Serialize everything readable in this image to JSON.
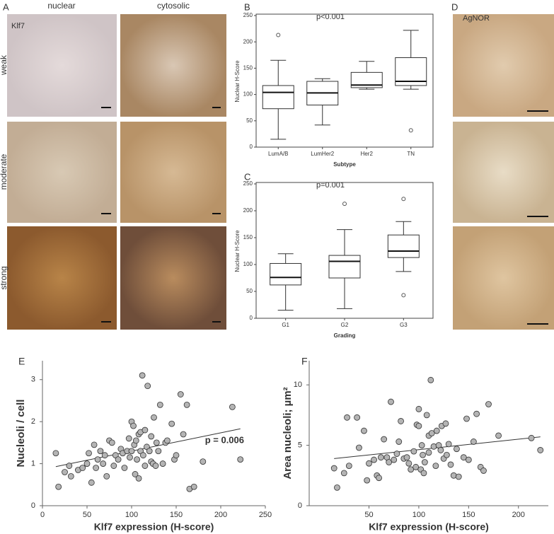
{
  "panel_labels": [
    "A",
    "B",
    "C",
    "D",
    "E",
    "F"
  ],
  "columns": [
    "nuclear",
    "cytosolic"
  ],
  "rows": [
    "weak",
    "moderate",
    "strong"
  ],
  "marker": "Klf7",
  "stain": "AgNOR",
  "chart_data": [
    {
      "type": "box",
      "annotation": "p<0.001",
      "xlabel": "Subtype",
      "ylabel": "Nuclear H-Score",
      "categories": [
        "LumA/B",
        "LumHer2",
        "Her2",
        "TN"
      ],
      "low": [
        15,
        42,
        110,
        110
      ],
      "q1": [
        73,
        80,
        113,
        117
      ],
      "median": [
        104,
        103,
        118,
        125
      ],
      "q3": [
        117,
        125,
        142,
        170
      ],
      "high": [
        165,
        130,
        163,
        222
      ],
      "outliers": [
        [
          213
        ],
        [],
        [],
        [
          32
        ]
      ],
      "ylim": [
        0,
        250
      ],
      "yticks": [
        0,
        50,
        100,
        150,
        200,
        250
      ]
    },
    {
      "type": "box",
      "annotation": "p=0.001",
      "xlabel": "Grading",
      "ylabel": "Nuclear H-Score",
      "categories": [
        "G1",
        "G2",
        "G3"
      ],
      "low": [
        15,
        18,
        87
      ],
      "q1": [
        62,
        75,
        113
      ],
      "median": [
        76,
        106,
        125
      ],
      "q3": [
        102,
        117,
        155
      ],
      "high": [
        120,
        165,
        180
      ],
      "outliers": [
        [],
        [
          213
        ],
        [
          43,
          222
        ]
      ],
      "ylim": [
        0,
        250
      ],
      "yticks": [
        0,
        50,
        100,
        150,
        200,
        250
      ]
    },
    {
      "type": "scatter",
      "annotation": "p = 0.006",
      "xlabel": "Klf7 expression (H-score)",
      "ylabel": "Nucleoli / cell",
      "color": "#b4b4b4",
      "x": [
        15,
        18,
        25,
        30,
        32,
        40,
        45,
        50,
        52,
        55,
        58,
        60,
        62,
        65,
        68,
        70,
        72,
        75,
        78,
        80,
        82,
        85,
        88,
        90,
        92,
        95,
        97,
        98,
        100,
        100,
        102,
        103,
        104,
        105,
        106,
        108,
        108,
        110,
        110,
        112,
        113,
        115,
        115,
        117,
        118,
        120,
        122,
        122,
        124,
        125,
        127,
        128,
        130,
        132,
        135,
        138,
        140,
        145,
        148,
        150,
        155,
        158,
        162,
        165,
        170,
        180,
        213,
        222
      ],
      "y": [
        1.25,
        0.45,
        0.8,
        0.95,
        0.7,
        0.85,
        0.9,
        1.0,
        1.25,
        0.55,
        1.45,
        0.9,
        1.1,
        1.3,
        1.0,
        1.2,
        0.7,
        1.55,
        1.5,
        0.95,
        1.2,
        1.1,
        1.35,
        1.25,
        0.9,
        1.3,
        1.6,
        1.15,
        1.3,
        2.0,
        1.9,
        1.45,
        0.75,
        1.55,
        1.1,
        1.7,
        0.65,
        1.3,
        1.75,
        3.1,
        1.2,
        1.8,
        0.95,
        1.4,
        2.85,
        1.3,
        1.05,
        1.65,
        1.0,
        2.1,
        0.95,
        1.5,
        1.3,
        2.4,
        1.0,
        1.5,
        1.55,
        1.95,
        1.1,
        1.2,
        2.65,
        1.7,
        2.4,
        0.4,
        0.45,
        1.05,
        2.35,
        1.1
      ],
      "trend": {
        "x": [
          15,
          222
        ],
        "y": [
          0.93,
          1.83
        ]
      },
      "xlim": [
        0,
        250
      ],
      "xticks": [
        0,
        50,
        100,
        150,
        200,
        250
      ],
      "ylim": [
        0,
        3.45
      ],
      "yticks": [
        0,
        1,
        2,
        3
      ]
    },
    {
      "type": "scatter",
      "xlabel": "Klf7 expression (H-score)",
      "ylabel": "Area nucleoli; µm²",
      "color": "#b4b4b4",
      "x": [
        15,
        18,
        25,
        28,
        30,
        38,
        40,
        45,
        48,
        50,
        55,
        58,
        60,
        62,
        65,
        68,
        70,
        72,
        75,
        78,
        80,
        82,
        85,
        88,
        90,
        92,
        95,
        97,
        98,
        100,
        100,
        102,
        103,
        104,
        105,
        106,
        108,
        110,
        110,
        112,
        113,
        115,
        117,
        118,
        120,
        122,
        123,
        125,
        127,
        128,
        130,
        132,
        135,
        138,
        140,
        145,
        148,
        150,
        155,
        158,
        162,
        165,
        170,
        180,
        213,
        222
      ],
      "y": [
        3.1,
        1.5,
        2.7,
        7.3,
        3.3,
        7.3,
        4.8,
        6.2,
        2.1,
        3.5,
        3.8,
        2.5,
        2.3,
        4.0,
        5.5,
        4.0,
        3.6,
        8.6,
        3.8,
        4.3,
        5.3,
        7.0,
        3.9,
        4.0,
        3.5,
        3.0,
        4.5,
        3.2,
        6.7,
        6.6,
        8.0,
        3.0,
        5.0,
        4.2,
        2.7,
        3.6,
        7.5,
        5.8,
        4.4,
        10.4,
        6.0,
        4.9,
        3.3,
        6.2,
        5.0,
        4.6,
        6.6,
        3.9,
        6.8,
        4.2,
        5.1,
        3.4,
        2.5,
        4.7,
        2.4,
        4.0,
        7.2,
        3.8,
        5.3,
        7.6,
        3.2,
        2.9,
        8.4,
        5.8,
        5.6,
        4.6
      ],
      "trend": {
        "x": [
          15,
          222
        ],
        "y": [
          3.9,
          5.7
        ]
      },
      "xlim": [
        -10,
        230
      ],
      "xticks": [
        50,
        100,
        150,
        200
      ],
      "ylim": [
        0,
        12
      ],
      "yticks": [
        0,
        5,
        10
      ]
    }
  ]
}
